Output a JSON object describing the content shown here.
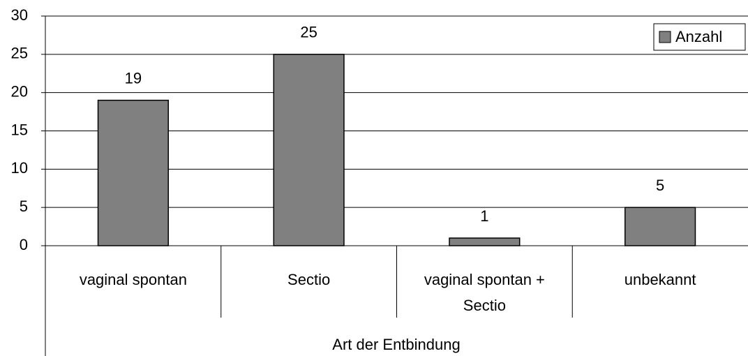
{
  "chart_data": {
    "type": "bar",
    "categories": [
      "vaginal spontan",
      "Sectio",
      "vaginal spontan + Sectio",
      "unbekannt"
    ],
    "values": [
      19,
      25,
      1,
      5
    ],
    "series_name": "Anzahl",
    "color": "#808080",
    "x_label": "Art der Entbindung",
    "ylim": [
      0,
      30
    ],
    "yticks": [
      0,
      5,
      10,
      15,
      20,
      25,
      30
    ],
    "grid": true,
    "legend": "top-right"
  }
}
